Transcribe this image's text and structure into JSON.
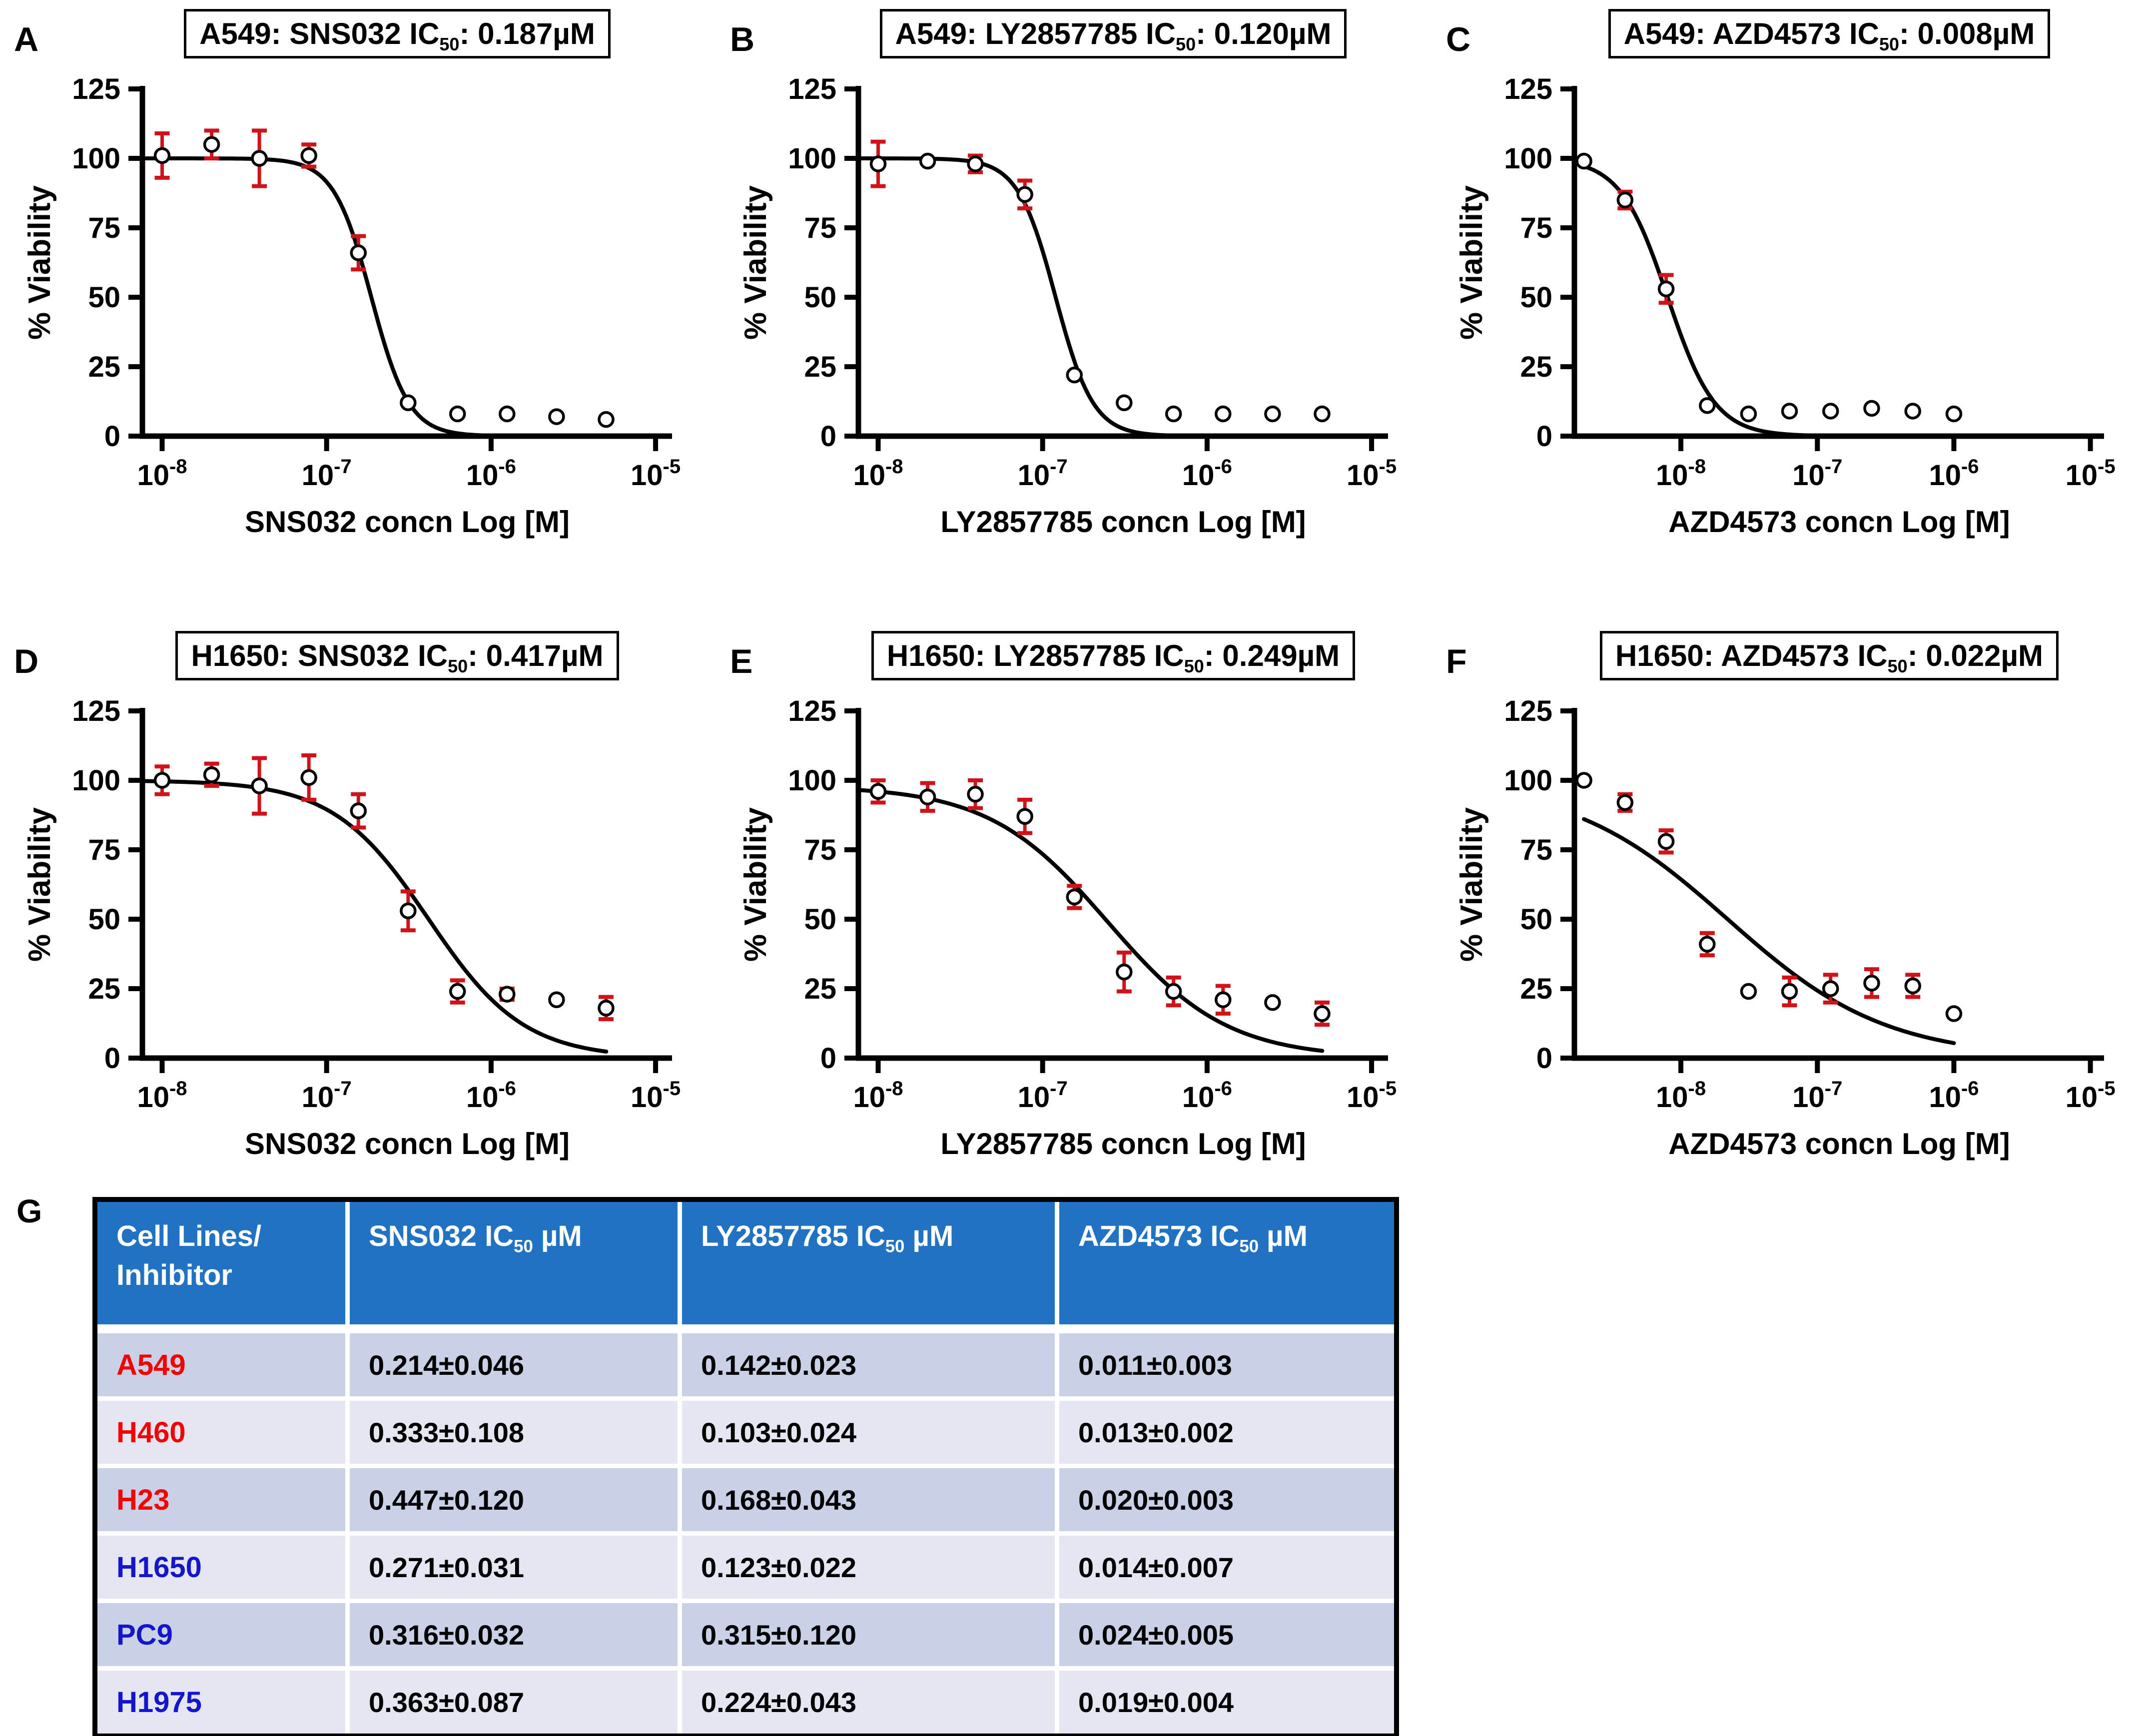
{
  "colors": {
    "errorbar": "#cf1318",
    "curve": "#000000",
    "marker_fill": "#ffffff",
    "marker_stroke": "#000000",
    "axis": "#000000"
  },
  "chart_data": [
    {
      "type": "scatter",
      "panel_label": "A",
      "title_parts": {
        "pre": "A549: SNS032 IC",
        "sub": "50",
        "post": ": 0.187µM"
      },
      "xlabel": "SNS032 concn Log [M]",
      "ylabel": "% Viability",
      "ylim": [
        0,
        125
      ],
      "yticks": [
        0,
        25,
        50,
        75,
        100,
        125
      ],
      "xticks_log": [
        -8,
        -7,
        -6,
        -5
      ],
      "xlim_log": [
        -8.12,
        -4.9
      ],
      "curve_range_log": [
        -8.1,
        -5.3
      ],
      "fit": {
        "top": 100,
        "bottom": 0,
        "ic50": 1.87e-07,
        "hill": 3.8
      },
      "points": [
        {
          "x": 1e-08,
          "y": 101,
          "err": 8
        },
        {
          "x": 2e-08,
          "y": 105,
          "err": 5
        },
        {
          "x": 3.9e-08,
          "y": 100,
          "err": 10
        },
        {
          "x": 7.8e-08,
          "y": 101,
          "err": 4
        },
        {
          "x": 1.56e-07,
          "y": 66,
          "err": 6
        },
        {
          "x": 3.13e-07,
          "y": 12,
          "err": 0
        },
        {
          "x": 6.25e-07,
          "y": 8,
          "err": 0
        },
        {
          "x": 1.25e-06,
          "y": 8,
          "err": 0
        },
        {
          "x": 2.5e-06,
          "y": 7,
          "err": 0
        },
        {
          "x": 5e-06,
          "y": 6,
          "err": 0
        }
      ]
    },
    {
      "type": "scatter",
      "panel_label": "B",
      "title_parts": {
        "pre": "A549: LY2857785 IC",
        "sub": "50",
        "post": ": 0.120µM"
      },
      "xlabel": "LY2857785 concn Log [M]",
      "ylabel": "% Viability",
      "ylim": [
        0,
        125
      ],
      "yticks": [
        0,
        25,
        50,
        75,
        100,
        125
      ],
      "xticks_log": [
        -8,
        -7,
        -6,
        -5
      ],
      "xlim_log": [
        -8.12,
        -4.9
      ],
      "curve_range_log": [
        -8.1,
        -5.3
      ],
      "fit": {
        "top": 100,
        "bottom": 0,
        "ic50": 1.2e-07,
        "hill": 3.8
      },
      "points": [
        {
          "x": 1e-08,
          "y": 98,
          "err": 8
        },
        {
          "x": 2e-08,
          "y": 99,
          "err": 0
        },
        {
          "x": 3.9e-08,
          "y": 98,
          "err": 3
        },
        {
          "x": 7.8e-08,
          "y": 87,
          "err": 5
        },
        {
          "x": 1.56e-07,
          "y": 22,
          "err": 0
        },
        {
          "x": 3.13e-07,
          "y": 12,
          "err": 0
        },
        {
          "x": 6.25e-07,
          "y": 8,
          "err": 0
        },
        {
          "x": 1.25e-06,
          "y": 8,
          "err": 0
        },
        {
          "x": 2.5e-06,
          "y": 8,
          "err": 0
        },
        {
          "x": 5e-06,
          "y": 8,
          "err": 0
        }
      ]
    },
    {
      "type": "scatter",
      "panel_label": "C",
      "title_parts": {
        "pre": "A549: AZD4573 IC",
        "sub": "50",
        "post": ": 0.008µM"
      },
      "xlabel": "AZD4573 concn Log [M]",
      "ylabel": "% Viability",
      "ylim": [
        0,
        125
      ],
      "yticks": [
        0,
        25,
        50,
        75,
        100,
        125
      ],
      "xticks_log": [
        -8,
        -7,
        -6,
        -5
      ],
      "xlim_log": [
        -8.78,
        -4.9
      ],
      "curve_range_log": [
        -8.71,
        -6.0
      ],
      "fit": {
        "top": 100,
        "bottom": 0,
        "ic50": 8e-09,
        "hill": 2.5
      },
      "points": [
        {
          "x": 1.95e-09,
          "y": 99,
          "err": 0
        },
        {
          "x": 3.9e-09,
          "y": 85,
          "err": 3
        },
        {
          "x": 7.8e-09,
          "y": 53,
          "err": 5
        },
        {
          "x": 1.56e-08,
          "y": 11,
          "err": 0
        },
        {
          "x": 3.13e-08,
          "y": 8,
          "err": 0
        },
        {
          "x": 6.25e-08,
          "y": 9,
          "err": 0
        },
        {
          "x": 1.25e-07,
          "y": 9,
          "err": 0
        },
        {
          "x": 2.5e-07,
          "y": 10,
          "err": 0
        },
        {
          "x": 5e-07,
          "y": 9,
          "err": 0
        },
        {
          "x": 1e-06,
          "y": 8,
          "err": 0
        }
      ]
    },
    {
      "type": "scatter",
      "panel_label": "D",
      "title_parts": {
        "pre": "H1650: SNS032 IC",
        "sub": "50",
        "post": ": 0.417µM"
      },
      "xlabel": "SNS032 concn Log [M]",
      "ylabel": "% Viability",
      "ylim": [
        0,
        125
      ],
      "yticks": [
        0,
        25,
        50,
        75,
        100,
        125
      ],
      "xticks_log": [
        -8,
        -7,
        -6,
        -5
      ],
      "xlim_log": [
        -8.12,
        -4.9
      ],
      "curve_range_log": [
        -8.1,
        -5.3
      ],
      "fit": {
        "top": 100,
        "bottom": 0,
        "ic50": 4.17e-07,
        "hill": 1.5
      },
      "points": [
        {
          "x": 1e-08,
          "y": 100,
          "err": 5
        },
        {
          "x": 2e-08,
          "y": 102,
          "err": 4
        },
        {
          "x": 3.9e-08,
          "y": 98,
          "err": 10
        },
        {
          "x": 7.8e-08,
          "y": 101,
          "err": 8
        },
        {
          "x": 1.56e-07,
          "y": 89,
          "err": 6
        },
        {
          "x": 3.13e-07,
          "y": 53,
          "err": 7
        },
        {
          "x": 6.25e-07,
          "y": 24,
          "err": 4
        },
        {
          "x": 1.25e-06,
          "y": 23,
          "err": 2
        },
        {
          "x": 2.5e-06,
          "y": 21,
          "err": 0
        },
        {
          "x": 5e-06,
          "y": 18,
          "err": 4
        }
      ]
    },
    {
      "type": "scatter",
      "panel_label": "E",
      "title_parts": {
        "pre": "H1650: LY2857785 IC",
        "sub": "50",
        "post": ": 0.249µM"
      },
      "xlabel": "LY2857785 concn Log [M]",
      "ylabel": "% Viability",
      "ylim": [
        0,
        125
      ],
      "yticks": [
        0,
        25,
        50,
        75,
        100,
        125
      ],
      "xticks_log": [
        -8,
        -7,
        -6,
        -5
      ],
      "xlim_log": [
        -8.12,
        -4.9
      ],
      "curve_range_log": [
        -8.1,
        -5.3
      ],
      "fit": {
        "top": 98,
        "bottom": 0,
        "ic50": 2.49e-07,
        "hill": 1.2
      },
      "points": [
        {
          "x": 1e-08,
          "y": 96,
          "err": 4
        },
        {
          "x": 2e-08,
          "y": 94,
          "err": 5
        },
        {
          "x": 3.9e-08,
          "y": 95,
          "err": 5
        },
        {
          "x": 7.8e-08,
          "y": 87,
          "err": 6
        },
        {
          "x": 1.56e-07,
          "y": 58,
          "err": 4
        },
        {
          "x": 3.13e-07,
          "y": 31,
          "err": 7
        },
        {
          "x": 6.25e-07,
          "y": 24,
          "err": 5
        },
        {
          "x": 1.25e-06,
          "y": 21,
          "err": 5
        },
        {
          "x": 2.5e-06,
          "y": 20,
          "err": 0
        },
        {
          "x": 5e-06,
          "y": 16,
          "err": 4
        }
      ]
    },
    {
      "type": "scatter",
      "panel_label": "F",
      "title_parts": {
        "pre": "H1650: AZD4573 IC",
        "sub": "50",
        "post": ": 0.022µM"
      },
      "xlabel": "AZD4573 concn Log [M]",
      "ylabel": "% Viability",
      "ylim": [
        0,
        125
      ],
      "yticks": [
        0,
        25,
        50,
        75,
        100,
        125
      ],
      "xticks_log": [
        -8,
        -7,
        -6,
        -5
      ],
      "xlim_log": [
        -8.78,
        -4.9
      ],
      "curve_range_log": [
        -8.71,
        -6.0
      ],
      "fit": {
        "top": 100,
        "bottom": 0,
        "ic50": 2.2e-08,
        "hill": 0.75
      },
      "points": [
        {
          "x": 1.95e-09,
          "y": 100,
          "err": 0
        },
        {
          "x": 3.9e-09,
          "y": 92,
          "err": 3
        },
        {
          "x": 7.8e-09,
          "y": 78,
          "err": 4
        },
        {
          "x": 1.56e-08,
          "y": 41,
          "err": 4
        },
        {
          "x": 3.13e-08,
          "y": 24,
          "err": 0
        },
        {
          "x": 6.25e-08,
          "y": 24,
          "err": 5
        },
        {
          "x": 1.25e-07,
          "y": 25,
          "err": 5
        },
        {
          "x": 2.5e-07,
          "y": 27,
          "err": 5
        },
        {
          "x": 5e-07,
          "y": 26,
          "err": 4
        },
        {
          "x": 1e-06,
          "y": 16,
          "err": 0
        }
      ]
    }
  ],
  "table": {
    "panel_label": "G",
    "header_col0": "Cell Lines/\nInhibitor",
    "header_cols": [
      {
        "pre": "SNS032 IC",
        "sub": "50",
        "post": " µM"
      },
      {
        "pre": "LY2857785 IC",
        "sub": "50",
        "post": " µM"
      },
      {
        "pre": "AZD4573 IC",
        "sub": "50",
        "post": " µM"
      }
    ],
    "rows": [
      {
        "name": "A549",
        "name_color": "#f50000",
        "values": [
          "0.214±0.046",
          "0.142±0.023",
          "0.011±0.003"
        ]
      },
      {
        "name": "H460",
        "name_color": "#f50000",
        "values": [
          "0.333±0.108",
          "0.103±0.024",
          "0.013±0.002"
        ]
      },
      {
        "name": "H23",
        "name_color": "#f50000",
        "values": [
          "0.447±0.120",
          "0.168±0.043",
          "0.020±0.003"
        ]
      },
      {
        "name": "H1650",
        "name_color": "#1515cd",
        "values": [
          "0.271±0.031",
          "0.123±0.022",
          "0.014±0.007"
        ]
      },
      {
        "name": "PC9",
        "name_color": "#1515cd",
        "values": [
          "0.316±0.032",
          "0.315±0.120",
          "0.024±0.005"
        ]
      },
      {
        "name": "H1975",
        "name_color": "#1515cd",
        "values": [
          "0.363±0.087",
          "0.224±0.043",
          "0.019±0.004"
        ]
      }
    ],
    "colors": {
      "header_bg": "#2272c3",
      "header_text": "#ffffff",
      "row_dark": "#c8d1e6",
      "row_light": "#e4e7f2",
      "separator": "#ffffff",
      "border": "#000000"
    }
  }
}
